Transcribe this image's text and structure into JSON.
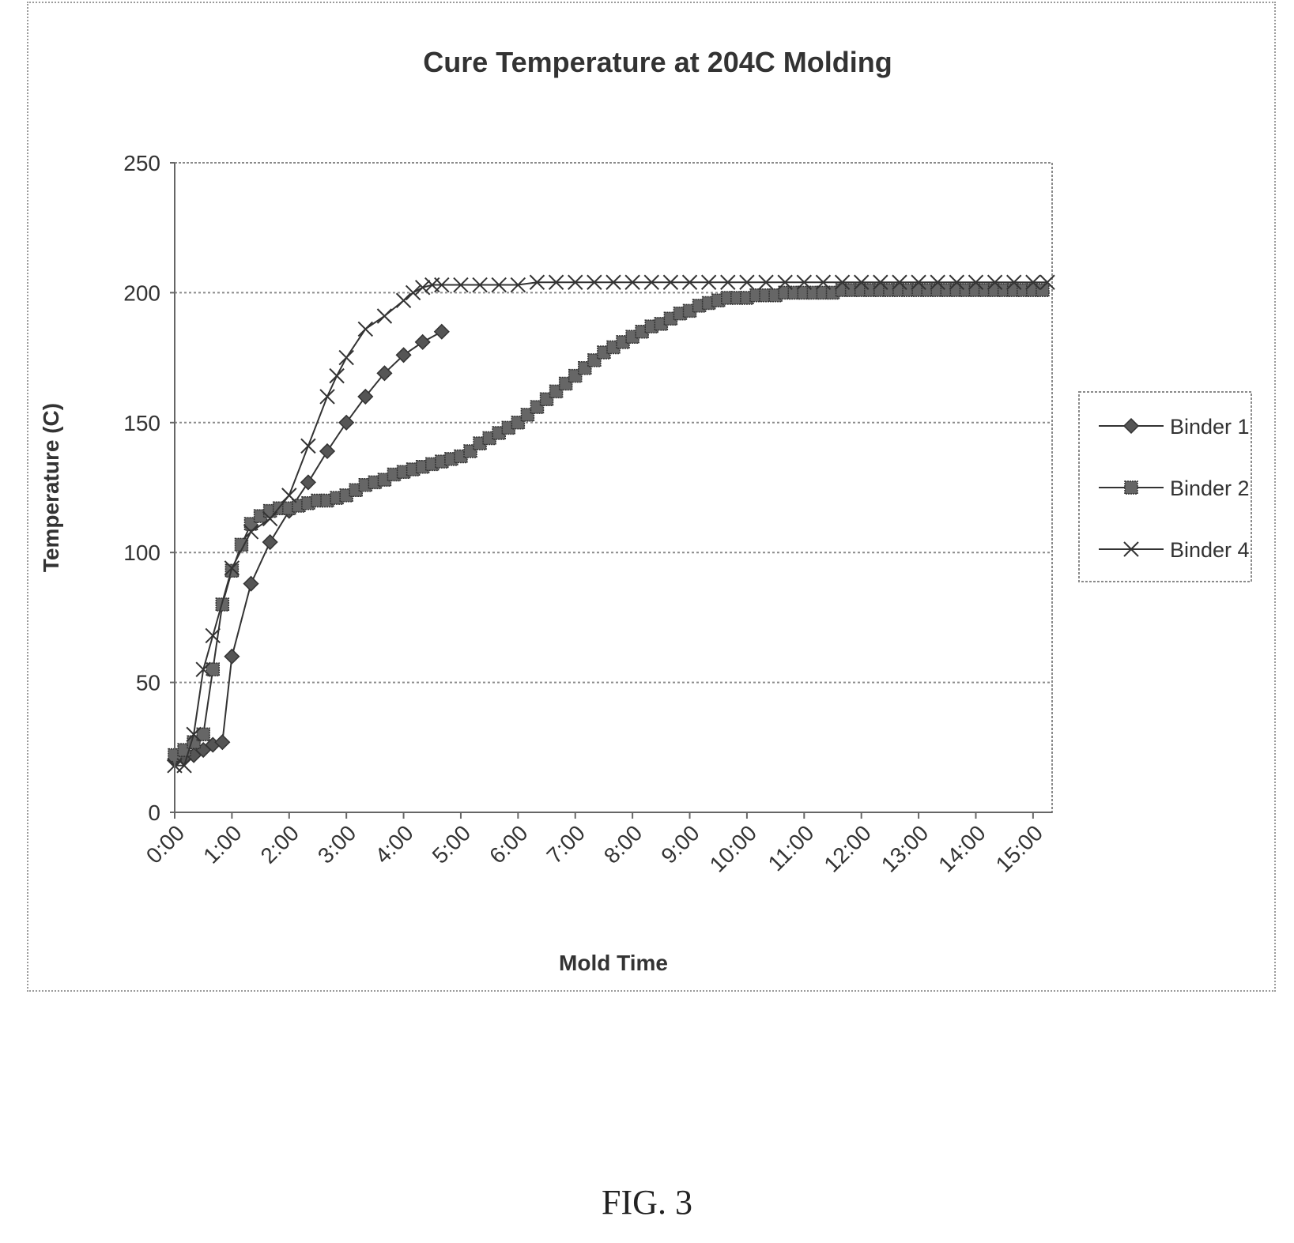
{
  "chart_data": {
    "type": "line",
    "title": "Cure Temperature at 204C Molding",
    "xlabel": "Mold Time",
    "ylabel": "Temperature (C)",
    "ylim": [
      0,
      250
    ],
    "yticks": [
      0,
      50,
      100,
      150,
      200,
      250
    ],
    "xlim": [
      "0:00",
      "15:20"
    ],
    "xticks": [
      "0:00",
      "1:00",
      "2:00",
      "3:00",
      "4:00",
      "5:00",
      "6:00",
      "7:00",
      "8:00",
      "9:00",
      "10:00",
      "11:00",
      "12:00",
      "13:00",
      "14:00",
      "15:00"
    ],
    "grid": "horizontal",
    "legend": "right",
    "series": [
      {
        "name": "Binder 1",
        "marker": "diamond",
        "x": [
          "0:00",
          "0:10",
          "0:20",
          "0:30",
          "0:40",
          "0:50",
          "1:00",
          "1:20",
          "1:40",
          "2:00",
          "2:20",
          "2:40",
          "3:00",
          "3:20",
          "3:40",
          "4:00",
          "4:20",
          "4:40"
        ],
        "y": [
          20,
          21,
          22,
          24,
          26,
          27,
          60,
          88,
          104,
          116,
          127,
          139,
          150,
          160,
          169,
          176,
          181,
          185
        ]
      },
      {
        "name": "Binder 2",
        "marker": "square",
        "x": [
          "0:00",
          "0:10",
          "0:20",
          "0:30",
          "0:40",
          "0:50",
          "1:00",
          "1:10",
          "1:20",
          "1:30",
          "1:40",
          "1:50",
          "2:00",
          "2:10",
          "2:20",
          "2:30",
          "2:40",
          "2:50",
          "3:00",
          "3:10",
          "3:20",
          "3:30",
          "3:40",
          "3:50",
          "4:00",
          "4:10",
          "4:20",
          "4:30",
          "4:40",
          "4:50",
          "5:00",
          "5:10",
          "5:20",
          "5:30",
          "5:40",
          "5:50",
          "6:00",
          "6:10",
          "6:20",
          "6:30",
          "6:40",
          "6:50",
          "7:00",
          "7:10",
          "7:20",
          "7:30",
          "7:40",
          "7:50",
          "8:00",
          "8:10",
          "8:20",
          "8:30",
          "8:40",
          "8:50",
          "9:00",
          "9:10",
          "9:20",
          "9:30",
          "9:40",
          "9:50",
          "10:00",
          "10:10",
          "10:20",
          "10:30",
          "10:40",
          "10:50",
          "11:00",
          "11:10",
          "11:20",
          "11:30",
          "11:40",
          "11:50",
          "12:00",
          "12:10",
          "12:20",
          "12:30",
          "12:40",
          "12:50",
          "13:00",
          "13:10",
          "13:20",
          "13:30",
          "13:40",
          "13:50",
          "14:00",
          "14:10",
          "14:20",
          "14:30",
          "14:40",
          "14:50",
          "15:00",
          "15:10"
        ],
        "y": [
          22,
          24,
          27,
          30,
          55,
          80,
          93,
          103,
          111,
          114,
          116,
          117,
          117,
          118,
          119,
          120,
          120,
          121,
          122,
          124,
          126,
          127,
          128,
          130,
          131,
          132,
          133,
          134,
          135,
          136,
          137,
          139,
          142,
          144,
          146,
          148,
          150,
          153,
          156,
          159,
          162,
          165,
          168,
          171,
          174,
          177,
          179,
          181,
          183,
          185,
          187,
          188,
          190,
          192,
          193,
          195,
          196,
          197,
          198,
          198,
          198,
          199,
          199,
          199,
          200,
          200,
          200,
          200,
          200,
          200,
          201,
          201,
          201,
          201,
          201,
          201,
          201,
          201,
          201,
          201,
          201,
          201,
          201,
          201,
          201,
          201,
          201,
          201,
          201,
          201,
          201,
          201
        ]
      },
      {
        "name": "Binder 4",
        "marker": "x",
        "x": [
          "0:00",
          "0:10",
          "0:20",
          "0:30",
          "0:40",
          "1:00",
          "1:20",
          "1:40",
          "2:00",
          "2:20",
          "2:40",
          "2:50",
          "3:00",
          "3:20",
          "3:40",
          "4:00",
          "4:10",
          "4:20",
          "4:30",
          "4:40",
          "5:00",
          "5:20",
          "5:40",
          "6:00",
          "6:20",
          "6:40",
          "7:00",
          "7:20",
          "7:40",
          "8:00",
          "8:20",
          "8:40",
          "9:00",
          "9:20",
          "9:40",
          "10:00",
          "10:20",
          "10:40",
          "11:00",
          "11:20",
          "11:40",
          "12:00",
          "12:20",
          "12:40",
          "13:00",
          "13:20",
          "13:40",
          "14:00",
          "14:20",
          "14:40",
          "15:00",
          "15:15"
        ],
        "y": [
          18,
          18,
          30,
          55,
          68,
          94,
          108,
          113,
          122,
          141,
          160,
          168,
          175,
          186,
          191,
          197,
          200,
          202,
          203,
          203,
          203,
          203,
          203,
          203,
          204,
          204,
          204,
          204,
          204,
          204,
          204,
          204,
          204,
          204,
          204,
          204,
          204,
          204,
          204,
          204,
          204,
          204,
          204,
          204,
          204,
          204,
          204,
          204,
          204,
          204,
          204,
          204
        ]
      }
    ]
  },
  "caption": "FIG. 3"
}
